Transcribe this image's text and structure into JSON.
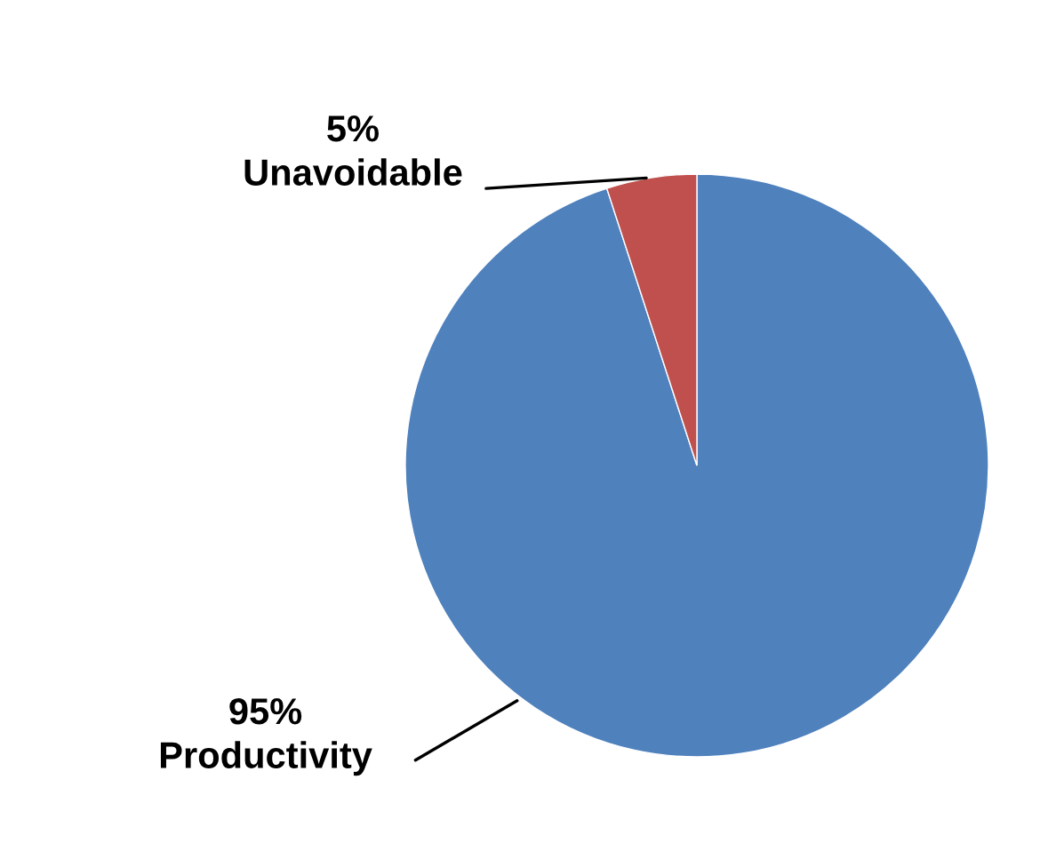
{
  "chart_data": {
    "type": "pie",
    "categories": [
      "Productivity",
      "Unavoidable"
    ],
    "values": [
      95,
      5
    ],
    "colors": [
      "#4f81bd",
      "#c0504d"
    ],
    "value_labels": [
      "95%",
      "5%"
    ]
  }
}
